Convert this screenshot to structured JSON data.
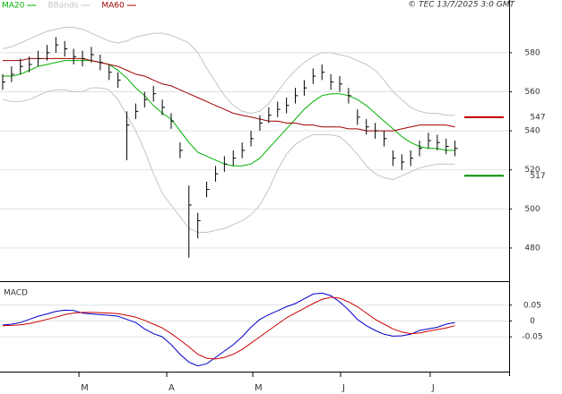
{
  "chart_data": [
    {
      "type": "ohlc",
      "source": "© TEC 13/7/2025 3:0 GMT",
      "xlim": [
        -0.3,
        57.1
      ],
      "ylim": [
        463,
        607
      ],
      "yticks": [
        480,
        500,
        520,
        540,
        560,
        580
      ],
      "bar_color": "#000000",
      "high": [
        569,
        573,
        577,
        578,
        581,
        584,
        588,
        586,
        582,
        581,
        583,
        579,
        574,
        570,
        550,
        554,
        560,
        563,
        556,
        549,
        534,
        512,
        498,
        514,
        522,
        527,
        530,
        534,
        540,
        548,
        552,
        555,
        557,
        562,
        566,
        572,
        574,
        569,
        568,
        562,
        551,
        546,
        544,
        540,
        530,
        528,
        530,
        535,
        539,
        538,
        536,
        535
      ],
      "low": [
        561,
        565,
        569,
        570,
        573,
        576,
        580,
        578,
        574,
        573,
        575,
        571,
        566,
        562,
        525,
        546,
        552,
        555,
        548,
        541,
        526,
        475,
        485,
        506,
        514,
        519,
        522,
        526,
        532,
        540,
        544,
        547,
        549,
        554,
        558,
        564,
        566,
        561,
        560,
        554,
        543,
        538,
        536,
        532,
        522,
        520,
        522,
        527,
        531,
        530,
        528,
        527
      ],
      "close": [
        565,
        569,
        573,
        574,
        577,
        580,
        584,
        582,
        578,
        577,
        579,
        575,
        570,
        566,
        543,
        550,
        556,
        559,
        552,
        545,
        530,
        502,
        494,
        510,
        518,
        523,
        526,
        530,
        536,
        544,
        548,
        551,
        553,
        558,
        562,
        568,
        570,
        565,
        564,
        558,
        547,
        542,
        540,
        536,
        526,
        524,
        526,
        531,
        535,
        534,
        532,
        531
      ],
      "series": [
        {
          "name": "MA20",
          "color": "#00b000",
          "values": [
            568,
            568,
            569,
            571,
            573,
            574,
            575,
            576,
            576,
            576,
            576,
            575,
            574,
            571,
            567,
            562,
            558,
            553,
            549,
            546,
            540,
            534,
            529,
            527,
            525,
            523,
            522,
            522,
            523,
            526,
            531,
            536,
            541,
            546,
            551,
            555,
            558,
            559,
            559,
            558,
            556,
            553,
            549,
            545,
            541,
            537,
            534,
            532,
            531,
            531,
            530,
            530
          ]
        },
        {
          "name": "BBands",
          "color": "#c4c4c4",
          "values": [
            582,
            583,
            585,
            587,
            589,
            591,
            592,
            593,
            593,
            592,
            590,
            588,
            586,
            585,
            586,
            588,
            589,
            590,
            590,
            589,
            587,
            585,
            580,
            572,
            565,
            558,
            553,
            550,
            549,
            550,
            554,
            560,
            566,
            571,
            575,
            578,
            580,
            580,
            579,
            578,
            576,
            574,
            571,
            566,
            560,
            556,
            552,
            550,
            549,
            549,
            548,
            548
          ],
          "lower": [
            556,
            555,
            555,
            556,
            558,
            560,
            561,
            561,
            560,
            560,
            562,
            562,
            561,
            556,
            548,
            540,
            530,
            518,
            508,
            502,
            496,
            490,
            488,
            488,
            489,
            490,
            492,
            494,
            497,
            502,
            510,
            520,
            528,
            533,
            536,
            538,
            538,
            538,
            537,
            533,
            528,
            522,
            518,
            516,
            515,
            517,
            519,
            521,
            522,
            523,
            523,
            523
          ]
        },
        {
          "name": "MA60",
          "color": "#a00000",
          "values": [
            576,
            576,
            576,
            577,
            577,
            577,
            577,
            577,
            577,
            577,
            576,
            575,
            574,
            573,
            571,
            569,
            568,
            566,
            564,
            563,
            561,
            559,
            557,
            555,
            553,
            551,
            549,
            548,
            547,
            546,
            545,
            545,
            544,
            544,
            543,
            543,
            542,
            542,
            542,
            541,
            541,
            540,
            540,
            540,
            540,
            541,
            542,
            543,
            543,
            543,
            543,
            542
          ]
        }
      ],
      "levels": [
        {
          "value": 547,
          "color": "#c00000"
        },
        {
          "value": 517,
          "color": "#009000"
        }
      ]
    },
    {
      "type": "line",
      "title": "MACD",
      "xlim": [
        -0.3,
        57.1
      ],
      "ylim": [
        -0.16,
        0.12
      ],
      "yticks": [
        0.05,
        0,
        -0.05
      ],
      "xticks": [
        {
          "value": 8.6,
          "label": "M"
        },
        {
          "value": 18.5,
          "label": "A"
        },
        {
          "value": 28.2,
          "label": "M"
        },
        {
          "value": 38.1,
          "label": "J"
        },
        {
          "value": 48.2,
          "label": "J"
        }
      ],
      "series": [
        {
          "color": "#0000cc",
          "values": [
            -0.013,
            -0.01,
            -0.005,
            0.005,
            0.015,
            0.022,
            0.03,
            0.034,
            0.033,
            0.025,
            0.022,
            0.02,
            0.018,
            0.015,
            0.005,
            -0.005,
            -0.025,
            -0.04,
            -0.05,
            -0.075,
            -0.105,
            -0.13,
            -0.142,
            -0.135,
            -0.115,
            -0.095,
            -0.075,
            -0.05,
            -0.02,
            0.005,
            0.02,
            0.032,
            0.045,
            0.055,
            0.07,
            0.085,
            0.088,
            0.08,
            0.06,
            0.035,
            0.005,
            -0.015,
            -0.03,
            -0.042,
            -0.048,
            -0.047,
            -0.042,
            -0.03,
            -0.025,
            -0.02,
            -0.01,
            -0.005
          ]
        },
        {
          "color": "#cc0000",
          "values": [
            -0.015,
            -0.014,
            -0.012,
            -0.008,
            -0.002,
            0.005,
            0.012,
            0.02,
            0.025,
            0.027,
            0.027,
            0.026,
            0.025,
            0.023,
            0.018,
            0.012,
            0.002,
            -0.01,
            -0.022,
            -0.04,
            -0.06,
            -0.082,
            -0.105,
            -0.118,
            -0.12,
            -0.115,
            -0.105,
            -0.09,
            -0.07,
            -0.05,
            -0.03,
            -0.01,
            0.01,
            0.025,
            0.04,
            0.055,
            0.068,
            0.075,
            0.072,
            0.06,
            0.045,
            0.025,
            0.005,
            -0.01,
            -0.025,
            -0.035,
            -0.04,
            -0.038,
            -0.032,
            -0.027,
            -0.022,
            -0.015
          ]
        }
      ]
    }
  ]
}
